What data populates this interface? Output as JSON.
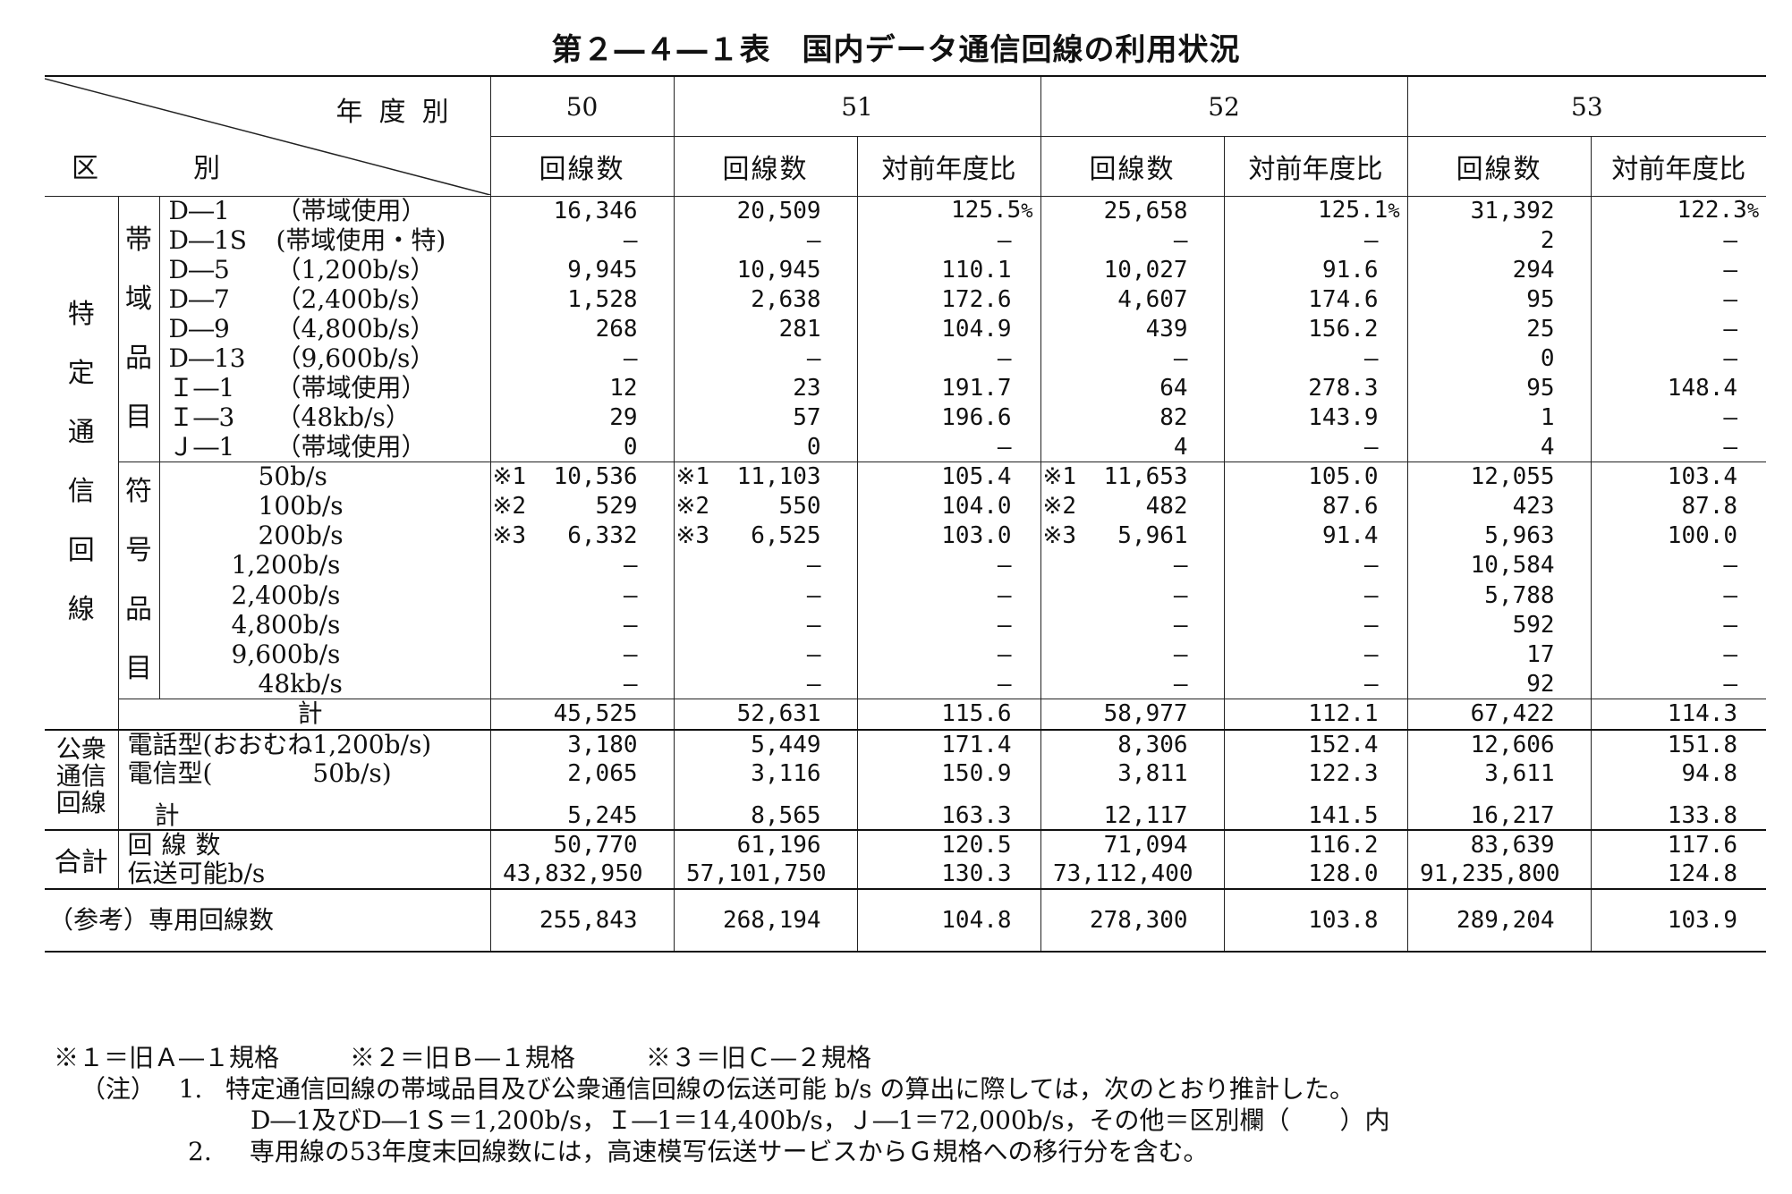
{
  "title": "第２―４―１表　国内データ通信回線の利用状況",
  "corner": {
    "year_label": "年度別",
    "cat1": "区",
    "cat2": "別"
  },
  "years": [
    "50",
    "51",
    "52",
    "53"
  ],
  "col_lines": "回線数",
  "col_ratio": "対前年度比",
  "group_tokutei": "特定通信回線",
  "group_band": "帯域品目",
  "group_sign": "符号品目",
  "group_public": "公衆通信回線",
  "group_total": "合計",
  "band_rows": [
    {
      "code": "D―1",
      "spec": "（帯域使用）",
      "v50": "16,346",
      "v51": "20,509",
      "r51": "125.5",
      "v52": "25,658",
      "r52": "125.1",
      "v53": "31,392",
      "r53": "122.3",
      "pct": "%"
    },
    {
      "code": "D―1S",
      "spec": "(帯域使用・特)",
      "v50": "―",
      "v51": "―",
      "r51": "―",
      "v52": "―",
      "r52": "―",
      "v53": "2",
      "r53": "―"
    },
    {
      "code": "D―5",
      "spec": "（1,200b/s）",
      "v50": "9,945",
      "v51": "10,945",
      "r51": "110.1",
      "v52": "10,027",
      "r52": "91.6",
      "v53": "294",
      "r53": "―"
    },
    {
      "code": "D―7",
      "spec": "（2,400b/s）",
      "v50": "1,528",
      "v51": "2,638",
      "r51": "172.6",
      "v52": "4,607",
      "r52": "174.6",
      "v53": "95",
      "r53": "―"
    },
    {
      "code": "D―9",
      "spec": "（4,800b/s）",
      "v50": "268",
      "v51": "281",
      "r51": "104.9",
      "v52": "439",
      "r52": "156.2",
      "v53": "25",
      "r53": "―"
    },
    {
      "code": "D―13",
      "spec": "（9,600b/s）",
      "v50": "―",
      "v51": "―",
      "r51": "―",
      "v52": "―",
      "r52": "―",
      "v53": "0",
      "r53": "―"
    },
    {
      "code": "Ｉ―1",
      "spec": "（帯域使用）",
      "v50": "12",
      "v51": "23",
      "r51": "191.7",
      "v52": "64",
      "r52": "278.3",
      "v53": "95",
      "r53": "148.4"
    },
    {
      "code": "Ｉ―3",
      "spec": "（48kb/s）",
      "v50": "29",
      "v51": "57",
      "r51": "196.6",
      "v52": "82",
      "r52": "143.9",
      "v53": "1",
      "r53": "―"
    },
    {
      "code": "Ｊ―1",
      "spec": "（帯域使用）",
      "v50": "0",
      "v51": "0",
      "r51": "―",
      "v52": "4",
      "r52": "―",
      "v53": "4",
      "r53": "―"
    }
  ],
  "sign_rows": [
    {
      "label": "50b/s",
      "m50": "※1",
      "v50": "10,536",
      "m51": "※1",
      "v51": "11,103",
      "r51": "105.4",
      "m52": "※1",
      "v52": "11,653",
      "r52": "105.0",
      "v53": "12,055",
      "r53": "103.4"
    },
    {
      "label": "100b/s",
      "m50": "※2",
      "v50": "529",
      "m51": "※2",
      "v51": "550",
      "r51": "104.0",
      "m52": "※2",
      "v52": "482",
      "r52": "87.6",
      "v53": "423",
      "r53": "87.8"
    },
    {
      "label": "200b/s",
      "m50": "※3",
      "v50": "6,332",
      "m51": "※3",
      "v51": "6,525",
      "r51": "103.0",
      "m52": "※3",
      "v52": "5,961",
      "r52": "91.4",
      "v53": "5,963",
      "r53": "100.0"
    },
    {
      "label": "1,200b/s",
      "m50": "",
      "v50": "―",
      "m51": "",
      "v51": "―",
      "r51": "―",
      "m52": "",
      "v52": "―",
      "r52": "―",
      "v53": "10,584",
      "r53": "―"
    },
    {
      "label": "2,400b/s",
      "m50": "",
      "v50": "―",
      "m51": "",
      "v51": "―",
      "r51": "―",
      "m52": "",
      "v52": "―",
      "r52": "―",
      "v53": "5,788",
      "r53": "―"
    },
    {
      "label": "4,800b/s",
      "m50": "",
      "v50": "―",
      "m51": "",
      "v51": "―",
      "r51": "―",
      "m52": "",
      "v52": "―",
      "r52": "―",
      "v53": "592",
      "r53": "―"
    },
    {
      "label": "9,600b/s",
      "m50": "",
      "v50": "―",
      "m51": "",
      "v51": "―",
      "r51": "―",
      "m52": "",
      "v52": "―",
      "r52": "―",
      "v53": "17",
      "r53": "―"
    },
    {
      "label": "48kb/s",
      "m50": "",
      "v50": "―",
      "m51": "",
      "v51": "―",
      "r51": "―",
      "m52": "",
      "v52": "―",
      "r52": "―",
      "v53": "92",
      "r53": "―"
    }
  ],
  "tokutei_total": {
    "label": "計",
    "v50": "45,525",
    "v51": "52,631",
    "r51": "115.6",
    "v52": "58,977",
    "r52": "112.1",
    "v53": "67,422",
    "r53": "114.3"
  },
  "public_rows": [
    {
      "label": "電話型(おおむね1,200b/s)",
      "v50": "3,180",
      "v51": "5,449",
      "r51": "171.4",
      "v52": "8,306",
      "r52": "152.4",
      "v53": "12,606",
      "r53": "151.8"
    },
    {
      "label": "電信型(　　　　50b/s)",
      "v50": "2,065",
      "v51": "3,116",
      "r51": "150.9",
      "v52": "3,811",
      "r52": "122.3",
      "v53": "3,611",
      "r53": "94.8"
    },
    {
      "label": "計",
      "v50": "5,245",
      "v51": "8,565",
      "r51": "163.3",
      "v52": "12,117",
      "r52": "141.5",
      "v53": "16,217",
      "r53": "133.8"
    }
  ],
  "total_rows": [
    {
      "label": "回線数",
      "v50": "50,770",
      "v51": "61,196",
      "r51": "120.5",
      "v52": "71,094",
      "r52": "116.2",
      "v53": "83,639",
      "r53": "117.6"
    },
    {
      "label": "伝送可能b/s",
      "v50": "43,832,950",
      "v51": "57,101,750",
      "r51": "130.3",
      "v52": "73,112,400",
      "r52": "128.0",
      "v53": "91,235,800",
      "r53": "124.8"
    }
  ],
  "reference_row": {
    "label": "（参考）専用回線数",
    "v50": "255,843",
    "v51": "268,194",
    "r51": "104.8",
    "v52": "278,300",
    "r52": "103.8",
    "v53": "289,204",
    "r53": "103.9"
  },
  "notes": {
    "marks": [
      "※１＝旧Ａ―１規格",
      "※２＝旧Ｂ―１規格",
      "※３＝旧Ｃ―２規格"
    ],
    "note_label": "（注）",
    "n1_no": "1.",
    "n1": "特定通信回線の帯域品目及び公衆通信回線の伝送可能 b/s の算出に際しては，次のとおり推計した。",
    "n1b": "D―1及びD―1Ｓ＝1,200b/s，Ｉ―1＝14,400b/s，Ｊ―1＝72,000b/s，その他＝区別欄（　　）内",
    "n2_no": "2.",
    "n2": "専用線の53年度末回線数には，高速模写伝送サービスからＧ規格への移行分を含む。"
  }
}
